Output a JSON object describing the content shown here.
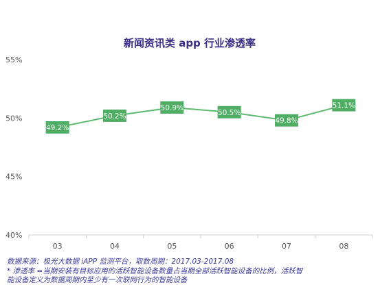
{
  "chart_data": {
    "type": "line",
    "title": "新闻资讯类 app 行业渗透率",
    "xlabel": "",
    "ylabel": "",
    "categories": [
      "03",
      "04",
      "05",
      "06",
      "07",
      "08"
    ],
    "series": [
      {
        "values": [
          49.2,
          50.2,
          50.9,
          50.5,
          49.8,
          51.1
        ],
        "labels": [
          "49.2%",
          "50.2%",
          "50.9%",
          "50.5%",
          "49.8%",
          "51.1%"
        ]
      }
    ],
    "ylim": [
      40,
      55
    ],
    "yticks": [
      {
        "value": 55,
        "label": "55%"
      },
      {
        "value": 50,
        "label": "50%"
      },
      {
        "value": 45,
        "label": "45%"
      },
      {
        "value": 40,
        "label": "40%"
      }
    ],
    "grid": false,
    "colors": {
      "series": "#5cba6f",
      "label_box": "#4fae63",
      "title": "#3b2f86",
      "axis": "#d0d0d0"
    }
  },
  "footnotes": {
    "source": "数据来源：极光大数据 iAPP 监测平台，取数周期：2017.03-2017.08",
    "note_line1": "* 渗透率 =当期安装有目标应用的活跃智能设备数量占当期全部活跃智能设备的比例，活跃智",
    "note_line2": "能设备定义为数据周期内至少有一次联网行为的智能设备"
  }
}
